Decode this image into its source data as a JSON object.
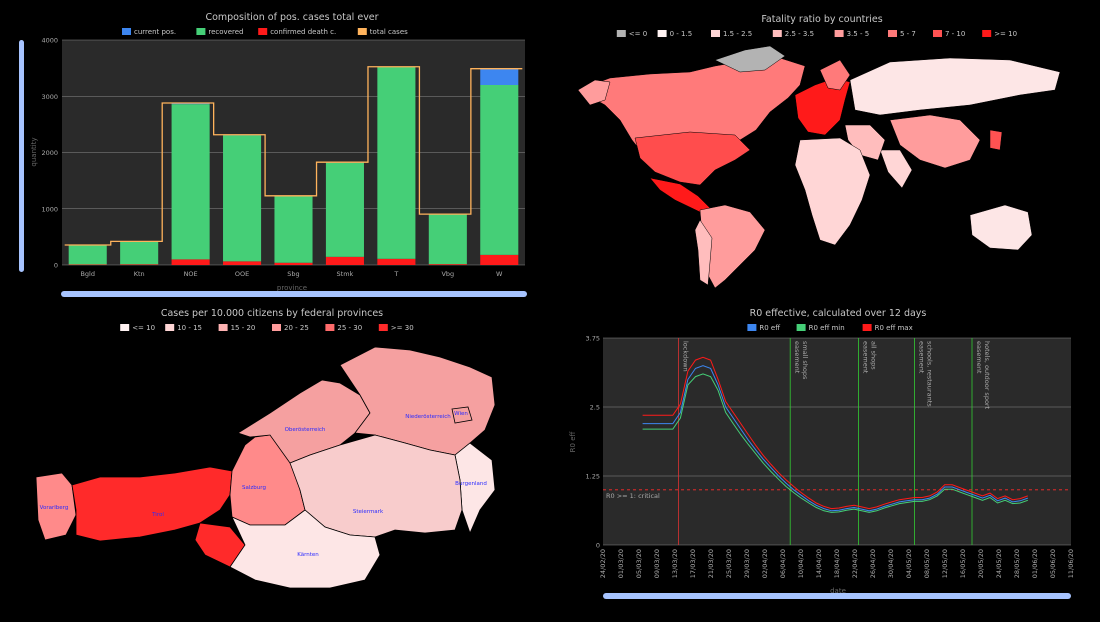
{
  "colors": {
    "current": "#3d86f0",
    "recovered": "#45cf77",
    "death": "#ff1a1a",
    "total": "#ffb35c",
    "bg": "#000000",
    "plot": "#2a2a2a",
    "scroll": "#a7c4ff"
  },
  "chart_data": [
    {
      "type": "bar",
      "title": "Composition of pos. cases total ever",
      "xlabel": "province",
      "ylabel": "quantity",
      "ylim": [
        0,
        4000
      ],
      "yticks": [
        0,
        1000,
        2000,
        3000,
        4000
      ],
      "categories": [
        "Bgld",
        "Ktn",
        "NOE",
        "OOE",
        "Sbg",
        "Stmk",
        "T",
        "Vbg",
        "W"
      ],
      "series": [
        {
          "name": "current pos.",
          "values": [
            2,
            3,
            20,
            10,
            5,
            8,
            5,
            5,
            290
          ]
        },
        {
          "name": "recovered",
          "values": [
            345,
            405,
            2760,
            2240,
            1185,
            1675,
            3410,
            885,
            3020
          ]
        },
        {
          "name": "confirmed death c.",
          "values": [
            9,
            12,
            100,
            65,
            40,
            145,
            110,
            15,
            180
          ]
        },
        {
          "name": "total cases",
          "values": [
            356,
            420,
            2880,
            2315,
            1230,
            1828,
            3525,
            905,
            3490
          ]
        }
      ],
      "legend": "top"
    },
    {
      "type": "line",
      "title": "R0 effective, calculated over 12 days",
      "xlabel": "date",
      "ylabel": "R0 eff",
      "ylim": [
        0,
        3.75
      ],
      "yticks": [
        "0",
        "1.25",
        "2.5",
        "3.75"
      ],
      "xticks": [
        "24/02/20",
        "01/03/20",
        "05/03/20",
        "09/03/20",
        "13/03/20",
        "17/03/20",
        "21/03/20",
        "25/03/20",
        "29/03/20",
        "02/04/20",
        "06/04/20",
        "10/04/20",
        "14/04/20",
        "18/04/20",
        "22/04/20",
        "26/04/20",
        "30/04/20",
        "04/05/20",
        "08/05/20",
        "12/05/20",
        "16/05/20",
        "20/05/20",
        "24/05/20",
        "28/05/20",
        "01/06/20",
        "05/06/20",
        "11/06/20"
      ],
      "x_index_note_free": true,
      "series": [
        {
          "name": "R0 eff",
          "values": [
            2.2,
            2.2,
            2.2,
            2.2,
            2.2,
            2.4,
            3.0,
            3.2,
            3.25,
            3.2,
            2.9,
            2.5,
            2.3,
            2.1,
            1.9,
            1.72,
            1.55,
            1.4,
            1.25,
            1.12,
            1.0,
            0.9,
            0.8,
            0.72,
            0.66,
            0.62,
            0.63,
            0.66,
            0.68,
            0.65,
            0.62,
            0.65,
            0.7,
            0.74,
            0.78,
            0.8,
            0.82,
            0.82,
            0.85,
            0.92,
            1.05,
            1.05,
            1.0,
            0.95,
            0.9,
            0.85,
            0.9,
            0.8,
            0.85,
            0.78,
            0.8,
            0.85
          ]
        },
        {
          "name": "R0 eff min",
          "values": [
            2.1,
            2.1,
            2.1,
            2.1,
            2.1,
            2.3,
            2.9,
            3.05,
            3.1,
            3.05,
            2.8,
            2.4,
            2.2,
            2.0,
            1.82,
            1.65,
            1.48,
            1.33,
            1.19,
            1.06,
            0.95,
            0.85,
            0.76,
            0.68,
            0.62,
            0.59,
            0.6,
            0.63,
            0.65,
            0.62,
            0.59,
            0.62,
            0.67,
            0.71,
            0.75,
            0.77,
            0.79,
            0.79,
            0.82,
            0.89,
            1.01,
            1.01,
            0.96,
            0.91,
            0.86,
            0.81,
            0.86,
            0.76,
            0.81,
            0.75,
            0.76,
            0.81
          ]
        },
        {
          "name": "R0 eff max",
          "values": [
            2.35,
            2.35,
            2.35,
            2.35,
            2.35,
            2.55,
            3.15,
            3.35,
            3.4,
            3.35,
            3.0,
            2.6,
            2.4,
            2.2,
            2.0,
            1.8,
            1.62,
            1.46,
            1.31,
            1.18,
            1.06,
            0.95,
            0.85,
            0.76,
            0.7,
            0.66,
            0.67,
            0.7,
            0.72,
            0.69,
            0.66,
            0.69,
            0.74,
            0.78,
            0.82,
            0.84,
            0.86,
            0.86,
            0.89,
            0.96,
            1.09,
            1.09,
            1.04,
            0.99,
            0.94,
            0.89,
            0.94,
            0.84,
            0.89,
            0.82,
            0.84,
            0.89
          ]
        }
      ],
      "annotations": [
        {
          "label": "lockdown",
          "x": "16/03/20"
        },
        {
          "label": "easement small shops",
          "x": "14/04/20"
        },
        {
          "label": "easement all shops",
          "x": "01/05/20"
        },
        {
          "label": "easement schools, restaurants",
          "x": "15/05/20"
        },
        {
          "label": "easement hotels, outdoor sport",
          "x": "29/05/20"
        }
      ],
      "threshold": {
        "label": "R0 >= 1: critical",
        "value": 1
      }
    }
  ],
  "map_world": {
    "title": "Fatality ratio by countries",
    "legend": [
      "<= 0",
      "0 - 1.5",
      "1.5 - 2.5",
      "2.5 - 3.5",
      "3.5 - 5",
      "5 - 7",
      "7 - 10",
      ">= 10"
    ],
    "legend_colors": [
      "#b3b3b3",
      "#fff2f2",
      "#ffd6d6",
      "#ffbdbd",
      "#ff9c9c",
      "#ff7a7a",
      "#ff5252",
      "#ff1a1a"
    ]
  },
  "map_austria": {
    "title": "Cases per 10.000 citizens by federal provinces",
    "legend": [
      "<= 10",
      "10 - 15",
      "15 - 20",
      "20 - 25",
      "25 - 30",
      ">= 30"
    ],
    "legend_colors": [
      "#fff2f2",
      "#ffd6d6",
      "#ffb3b3",
      "#ff9c9c",
      "#ff6b6b",
      "#ff2a2a"
    ],
    "provinces": [
      {
        "name": "Vorarlberg",
        "color": "#ff8a8a"
      },
      {
        "name": "Tirol",
        "color": "#ff2a2a"
      },
      {
        "name": "Salzburg",
        "color": "#ff8a8a"
      },
      {
        "name": "Oberösterreich",
        "color": "#f5a0a0"
      },
      {
        "name": "Niederösterreich",
        "color": "#f5a0a0"
      },
      {
        "name": "Wien",
        "color": "#f5a0a0"
      },
      {
        "name": "Burgenland",
        "color": "#fde6e6"
      },
      {
        "name": "Steiermark",
        "color": "#f8cccc"
      },
      {
        "name": "Kärnten",
        "color": "#fde6e6"
      }
    ]
  }
}
